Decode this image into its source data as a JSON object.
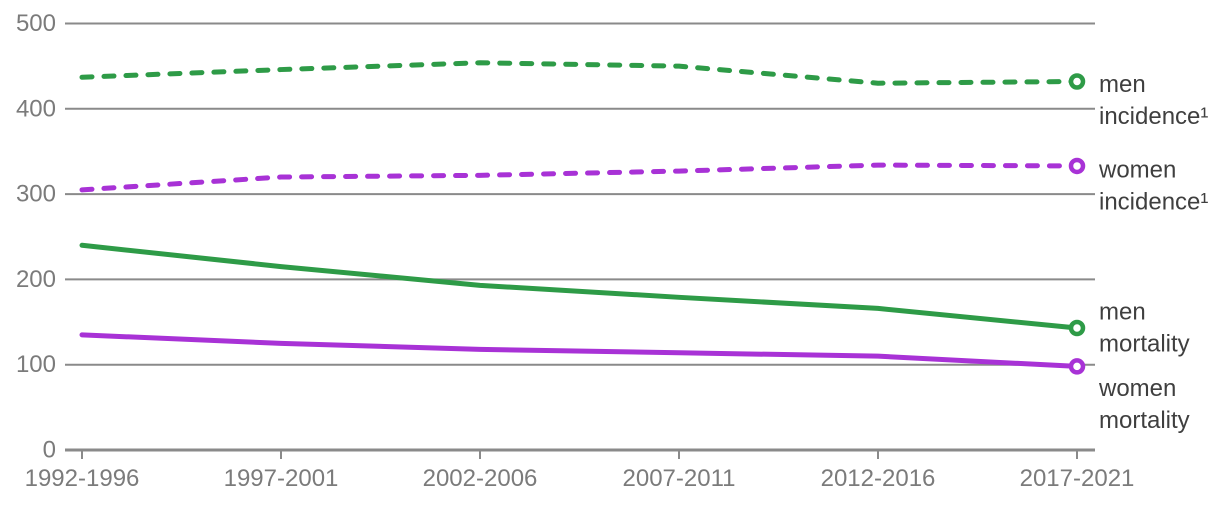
{
  "chart_data": {
    "type": "line",
    "title": "",
    "xlabel": "",
    "ylabel": "",
    "categories": [
      "1992-1996",
      "1997-2001",
      "2002-2006",
      "2007-2011",
      "2012-2016",
      "2017-2021"
    ],
    "y_ticks": [
      0,
      100,
      200,
      300,
      400,
      500
    ],
    "ylim": [
      0,
      500
    ],
    "grid": true,
    "legend_position": "right-of-line-ends",
    "series": [
      {
        "name": "men incidence",
        "label_lines": [
          "men",
          "incidence¹"
        ],
        "label_dy": [
          3,
          35
        ],
        "style": "dashed",
        "color": "#2e9b47",
        "end_marker": "open-circle",
        "values": [
          437,
          446,
          454,
          450,
          430,
          432
        ]
      },
      {
        "name": "women incidence",
        "label_lines": [
          "women",
          "incidence¹"
        ],
        "label_dy": [
          4,
          36
        ],
        "style": "dashed",
        "color": "#a832d6",
        "end_marker": "open-circle",
        "values": [
          305,
          320,
          322,
          327,
          334,
          333
        ]
      },
      {
        "name": "men mortality",
        "label_lines": [
          "men",
          "mortality"
        ],
        "label_dy": [
          -16,
          16
        ],
        "style": "solid",
        "color": "#2e9b47",
        "end_marker": "open-circle",
        "values": [
          240,
          215,
          193,
          179,
          166,
          143
        ]
      },
      {
        "name": "women mortality",
        "label_lines": [
          "women",
          "mortality"
        ],
        "label_dy": [
          22,
          54
        ],
        "style": "solid",
        "color": "#a832d6",
        "end_marker": "open-circle",
        "values": [
          135,
          125,
          118,
          114,
          110,
          98
        ]
      }
    ]
  },
  "colors": {
    "green": "#2e9b47",
    "purple": "#a832d6",
    "grid": "#8a8a8a",
    "axis_text": "#7b7b7b",
    "label_text": "#3f3f3f",
    "background": "#ffffff",
    "marker_fill": "#ffffff"
  }
}
